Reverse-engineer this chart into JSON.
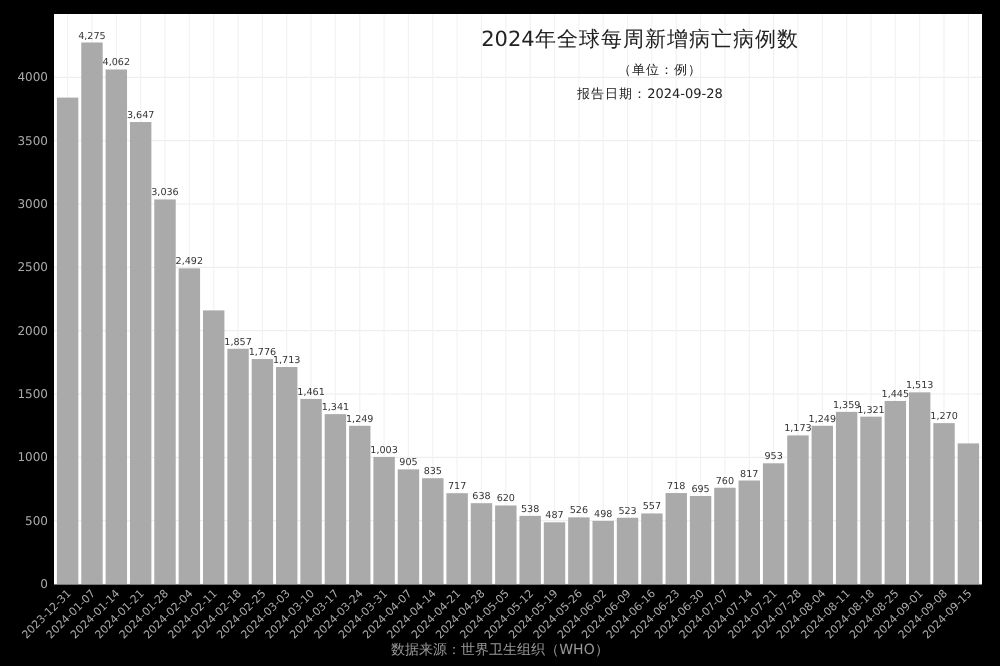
{
  "chart_data": {
    "type": "bar",
    "title": "2024年全球每周新增病亡病例数",
    "subtitle": "（单位：例）",
    "annotations": [
      "报告日期：2024-09-28",
      "数据来源：世界卫生组织（WHO）"
    ],
    "categories": [
      "2023-12-31",
      "2024-01-07",
      "2024-01-14",
      "2024-01-21",
      "2024-01-28",
      "2024-02-04",
      "2024-02-11",
      "2024-02-18",
      "2024-02-25",
      "2024-03-03",
      "2024-03-10",
      "2024-03-17",
      "2024-03-24",
      "2024-03-31",
      "2024-04-07",
      "2024-04-14",
      "2024-04-21",
      "2024-04-28",
      "2024-05-05",
      "2024-05-12",
      "2024-05-19",
      "2024-05-26",
      "2024-06-02",
      "2024-06-09",
      "2024-06-16",
      "2024-06-23",
      "2024-06-30",
      "2024-07-07",
      "2024-07-14",
      "2024-07-21",
      "2024-07-28",
      "2024-08-04",
      "2024-08-11",
      "2024-08-18",
      "2024-08-25",
      "2024-09-01",
      "2024-09-08",
      "2024-09-15"
    ],
    "values": [
      3840,
      4275,
      4062,
      3647,
      3036,
      2492,
      2160,
      1857,
      1776,
      1713,
      1461,
      1341,
      1249,
      1003,
      905,
      835,
      717,
      638,
      620,
      538,
      487,
      526,
      498,
      523,
      557,
      718,
      695,
      760,
      817,
      953,
      1173,
      1249,
      1359,
      1321,
      1445,
      1513,
      1270,
      1110
    ],
    "value_labels": [
      null,
      "4,275",
      "4,062",
      "3,647",
      "3,036",
      "2,492",
      null,
      "1,857",
      "1,776",
      "1,713",
      "1,461",
      "1,341",
      "1,249",
      "1,003",
      "905",
      "835",
      "717",
      "638",
      "620",
      "538",
      "487",
      "526",
      "498",
      "523",
      "557",
      "718",
      "695",
      "760",
      "817",
      "953",
      "1,173",
      "1,249",
      "1,359",
      "1,321",
      "1,445",
      "1,513",
      "1,270",
      null
    ],
    "color": "#aaaaaa",
    "ylim": [
      0,
      4500
    ],
    "yticks": [
      0,
      500,
      1000,
      1500,
      2000,
      2500,
      3000,
      3500,
      4000
    ],
    "grid": true
  }
}
